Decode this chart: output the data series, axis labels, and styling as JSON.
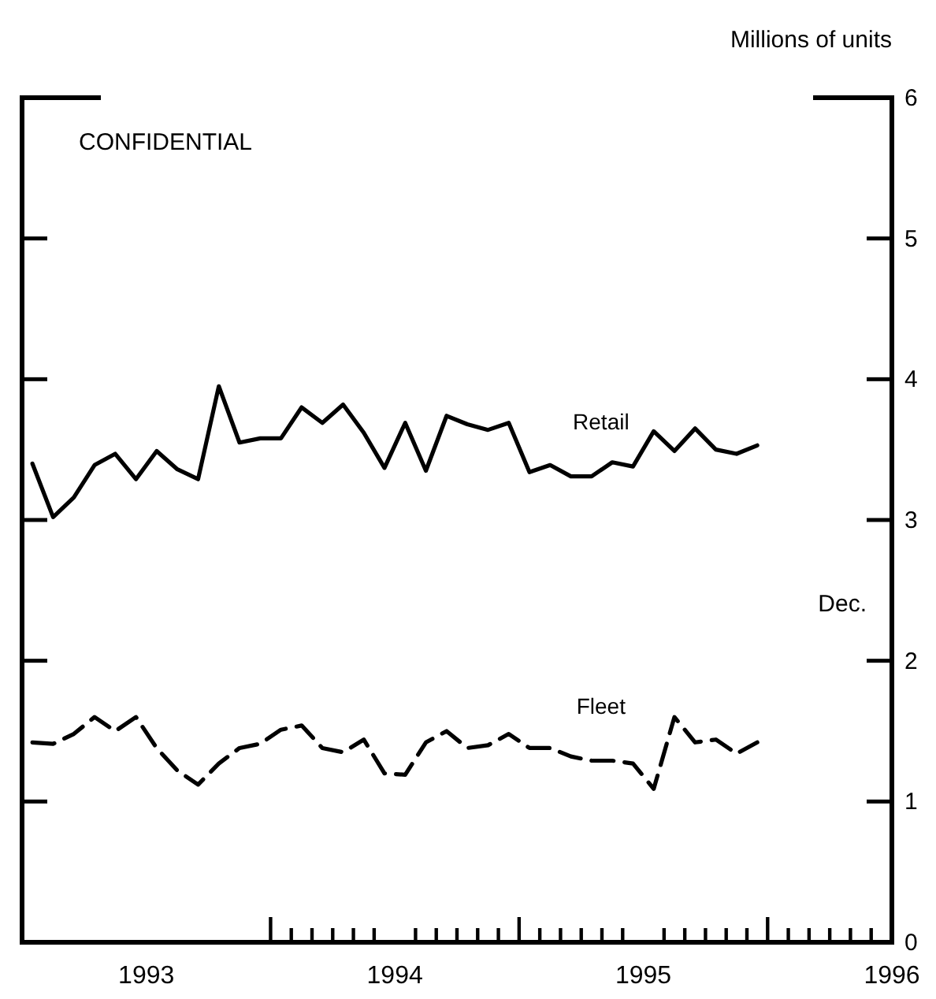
{
  "chart_data": {
    "type": "line",
    "ylabel": "Millions of units",
    "annotations": [
      "CONFIDENTIAL",
      "Dec."
    ],
    "x": [
      1993.0417,
      1993.125,
      1993.2083,
      1993.2917,
      1993.375,
      1993.4583,
      1993.5417,
      1993.625,
      1993.7083,
      1993.7917,
      1993.875,
      1993.9583,
      1994.0417,
      1994.125,
      1994.2083,
      1994.2917,
      1994.375,
      1994.4583,
      1994.5417,
      1994.625,
      1994.7083,
      1994.7917,
      1994.875,
      1994.9583,
      1995.0417,
      1995.125,
      1995.2083,
      1995.2917,
      1995.375,
      1995.4583,
      1995.5417,
      1995.625,
      1995.7083,
      1995.7917,
      1995.875,
      1995.9583
    ],
    "series": [
      {
        "name": "Retail",
        "color": "#000000",
        "line_style": "solid",
        "values": [
          3.4,
          3.02,
          3.16,
          3.39,
          3.47,
          3.29,
          3.49,
          3.36,
          3.29,
          3.95,
          3.55,
          3.58,
          3.58,
          3.8,
          3.69,
          3.82,
          3.62,
          3.37,
          3.69,
          3.35,
          3.74,
          3.68,
          3.64,
          3.69,
          3.34,
          3.39,
          3.31,
          3.31,
          3.41,
          3.38,
          3.63,
          3.49,
          3.65,
          3.5,
          3.47,
          3.53
        ]
      },
      {
        "name": "Fleet",
        "color": "#000000",
        "line_style": "dashed",
        "values": [
          1.42,
          1.41,
          1.48,
          1.6,
          1.5,
          1.6,
          1.38,
          1.22,
          1.12,
          1.27,
          1.38,
          1.41,
          1.51,
          1.54,
          1.38,
          1.35,
          1.44,
          1.2,
          1.19,
          1.42,
          1.5,
          1.38,
          1.4,
          1.48,
          1.38,
          1.38,
          1.32,
          1.29,
          1.29,
          1.27,
          1.09,
          1.6,
          1.42,
          1.44,
          1.34,
          1.42
        ]
      }
    ],
    "xlim": [
      1993,
      1996.5
    ],
    "xticks": [
      {
        "value": 1993.5,
        "label": "1993"
      },
      {
        "value": 1994.5,
        "label": "1994"
      },
      {
        "value": 1995.5,
        "label": "1995"
      },
      {
        "value": 1996.5,
        "label": "1996"
      },
      {
        "value": 1994,
        "label": null
      },
      {
        "value": 1994.0833,
        "label": null
      },
      {
        "value": 1994.1667,
        "label": null
      },
      {
        "value": 1994.25,
        "label": null
      },
      {
        "value": 1994.3333,
        "label": null
      },
      {
        "value": 1994.4167,
        "label": null
      },
      {
        "value": 1994.5833,
        "label": null
      },
      {
        "value": 1994.6667,
        "label": null
      },
      {
        "value": 1994.75,
        "label": null
      },
      {
        "value": 1994.8333,
        "label": null
      },
      {
        "value": 1994.9167,
        "label": null
      },
      {
        "value": 1995,
        "label": null
      },
      {
        "value": 1995.0833,
        "label": null
      },
      {
        "value": 1995.1667,
        "label": null
      },
      {
        "value": 1995.25,
        "label": null
      },
      {
        "value": 1995.3333,
        "label": null
      },
      {
        "value": 1995.4167,
        "label": null
      },
      {
        "value": 1995.5833,
        "label": null
      },
      {
        "value": 1995.6667,
        "label": null
      },
      {
        "value": 1995.75,
        "label": null
      },
      {
        "value": 1995.8333,
        "label": null
      },
      {
        "value": 1995.9167,
        "label": null
      },
      {
        "value": 1996,
        "label": null
      },
      {
        "value": 1996.0833,
        "label": null
      },
      {
        "value": 1996.1667,
        "label": null
      },
      {
        "value": 1996.25,
        "label": null
      },
      {
        "value": 1996.3333,
        "label": null
      },
      {
        "value": 1996.4167,
        "label": null
      }
    ],
    "ylim": [
      0,
      6
    ],
    "yticks": [
      0,
      1,
      2,
      3,
      4,
      5,
      6
    ],
    "grid": false
  }
}
